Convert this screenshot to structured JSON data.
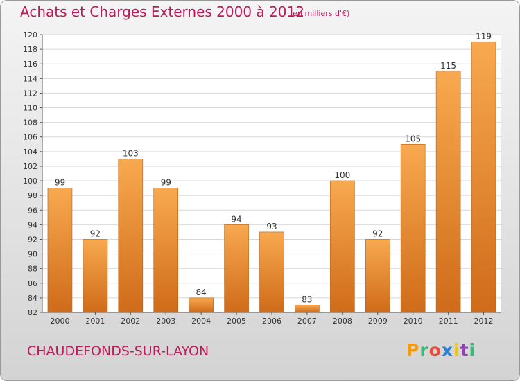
{
  "header": {
    "title": "Achats et Charges Externes 2000 à 2012",
    "unit": "(en milliers d'€)"
  },
  "footer": {
    "commune": "CHAUDEFONDS-SUR-LAYON",
    "brand": "Proxiti",
    "brand_colors": [
      "#f39c12",
      "#3cb878",
      "#e84c3d",
      "#2980d9",
      "#f1c40f",
      "#8e44ad",
      "#3cb878"
    ]
  },
  "colors": {
    "bar_light": "#f8a94f",
    "bar_dark": "#cf6b1a",
    "accent_text": "#c0185a"
  },
  "chart_data": {
    "type": "bar",
    "categories": [
      "2000",
      "2001",
      "2002",
      "2003",
      "2004",
      "2005",
      "2006",
      "2007",
      "2008",
      "2009",
      "2010",
      "2011",
      "2012"
    ],
    "values": [
      99,
      92,
      103,
      99,
      84,
      94,
      93,
      83,
      100,
      92,
      105,
      115,
      119
    ],
    "title": "Achats et Charges Externes 2000 à 2012",
    "xlabel": "",
    "ylabel": "",
    "ylim": [
      82,
      120
    ],
    "yticks": [
      82,
      84,
      86,
      88,
      90,
      92,
      94,
      96,
      98,
      100,
      102,
      104,
      106,
      108,
      110,
      112,
      114,
      116,
      118,
      120
    ],
    "grid": true,
    "data_labels": true
  }
}
